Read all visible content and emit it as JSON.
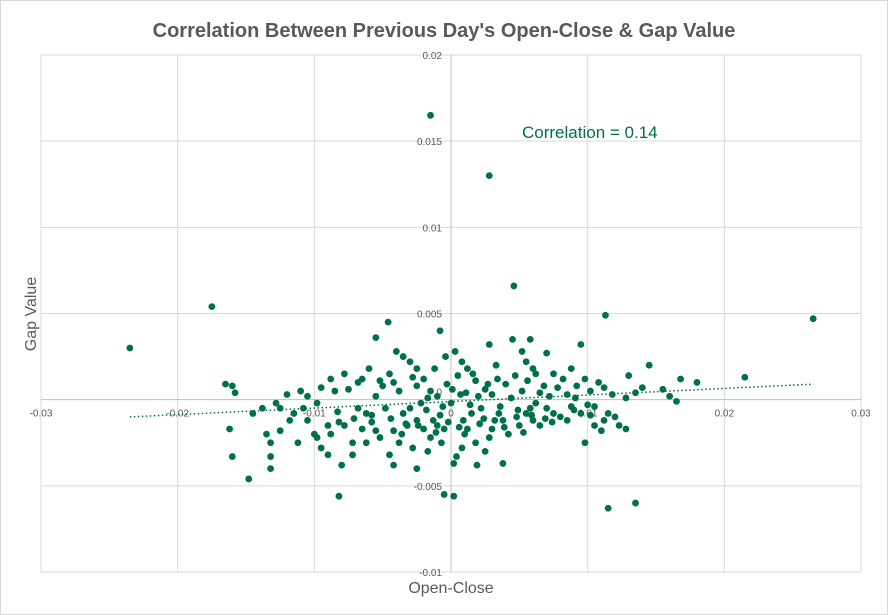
{
  "chart_data": {
    "type": "scatter",
    "title": "Correlation Between Previous  Day's Open-Close & Gap Value",
    "xlabel": "Open-Close",
    "ylabel": "Gap Value",
    "xlim": [
      -0.03,
      0.03
    ],
    "ylim": [
      -0.01,
      0.02
    ],
    "x_ticks": [
      -0.03,
      -0.02,
      -0.01,
      0,
      0.01,
      0.02,
      0.03
    ],
    "x_tick_labels": [
      "-0.03",
      "-0.02",
      "-0.01",
      "0",
      "0.01",
      "0.02",
      "0.03"
    ],
    "y_ticks": [
      -0.01,
      -0.005,
      0,
      0.005,
      0.01,
      0.015,
      0.02
    ],
    "y_tick_labels": [
      "-0.01",
      "-0.005",
      "0",
      "0.005",
      "0.01",
      "0.015",
      "0.02"
    ],
    "grid": true,
    "marker_color": "#00704a",
    "trendline": {
      "style": "dotted",
      "x": [
        -0.0235,
        0.0265
      ],
      "y": [
        -0.001,
        0.0009
      ]
    },
    "annotation": "Correlation = 0.14",
    "series": [
      {
        "values": [
          [
            -0.0235,
            0.003
          ],
          [
            -0.0175,
            0.0054
          ],
          [
            -0.0015,
            0.0165
          ],
          [
            0.0028,
            0.013
          ],
          [
            0.0046,
            0.0066
          ],
          [
            0.0113,
            0.0049
          ],
          [
            0.0265,
            0.0047
          ],
          [
            0.0215,
            0.0013
          ],
          [
            0.018,
            0.001
          ],
          [
            0.0168,
            0.0012
          ],
          [
            0.0145,
            0.002
          ],
          [
            0.0155,
            0.0006
          ],
          [
            0.016,
            0.0002
          ],
          [
            0.0165,
            -0.0001
          ],
          [
            0.013,
            0.0014
          ],
          [
            0.0135,
            0.0004
          ],
          [
            0.014,
            0.0007
          ],
          [
            0.0128,
            0.0001
          ],
          [
            -0.016,
            0.0008
          ],
          [
            -0.0158,
            0.0004
          ],
          [
            -0.0165,
            0.0009
          ],
          [
            -0.0162,
            -0.0017
          ],
          [
            -0.016,
            -0.0033
          ],
          [
            -0.0148,
            -0.0046
          ],
          [
            -0.0132,
            -0.0033
          ],
          [
            -0.0132,
            -0.004
          ],
          [
            -0.0135,
            -0.002
          ],
          [
            -0.0132,
            -0.0025
          ],
          [
            -0.0125,
            -0.0005
          ],
          [
            -0.0112,
            -0.0025
          ],
          [
            -0.01,
            -0.002
          ],
          [
            -0.0095,
            -0.0028
          ],
          [
            -0.0088,
            -0.002
          ],
          [
            -0.009,
            -0.0032
          ],
          [
            -0.0082,
            -0.0013
          ],
          [
            -0.0078,
            -0.0015
          ],
          [
            -0.0072,
            -0.0025
          ],
          [
            -0.0065,
            -0.0017
          ],
          [
            -0.0062,
            -0.0008
          ],
          [
            -0.0058,
            -0.0013
          ],
          [
            -0.0055,
            -0.0018
          ],
          [
            -0.0052,
            -0.0022
          ],
          [
            -0.0045,
            -0.0032
          ],
          [
            -0.0042,
            -0.0038
          ],
          [
            -0.0038,
            -0.0025
          ],
          [
            -0.0036,
            -0.002
          ],
          [
            -0.0032,
            -0.0015
          ],
          [
            -0.0028,
            -0.0028
          ],
          [
            -0.0025,
            -0.0012
          ],
          [
            -0.002,
            -0.0017
          ],
          [
            -0.0017,
            -0.003
          ],
          [
            -0.0015,
            -0.0022
          ],
          [
            -0.001,
            -0.0015
          ],
          [
            -0.0007,
            -0.0025
          ],
          [
            -0.0005,
            -0.0017
          ],
          [
            -0.0002,
            -0.0013
          ],
          [
            0.0002,
            -0.0037
          ],
          [
            0.0004,
            -0.0033
          ],
          [
            0.0008,
            -0.0028
          ],
          [
            0.001,
            -0.002
          ],
          [
            0.0012,
            -0.0017
          ],
          [
            0.0018,
            -0.0025
          ],
          [
            0.0025,
            -0.003
          ],
          [
            0.0028,
            -0.0022
          ],
          [
            0.003,
            -0.0017
          ],
          [
            0.0032,
            -0.0012
          ],
          [
            0.0035,
            -0.0008
          ],
          [
            0.0038,
            -0.0037
          ],
          [
            0.0042,
            -0.002
          ],
          [
            0.0048,
            -0.001
          ],
          [
            0.005,
            -0.0015
          ],
          [
            0.0055,
            -0.0008
          ],
          [
            0.0058,
            -0.0005
          ],
          [
            0.006,
            -0.0012
          ],
          [
            0.0065,
            -0.0015
          ],
          [
            0.007,
            -0.0005
          ],
          [
            0.0075,
            -0.0008
          ],
          [
            0.008,
            -0.001
          ],
          [
            0.0085,
            -0.0012
          ],
          [
            0.009,
            -0.0006
          ],
          [
            0.0095,
            -0.0008
          ],
          [
            0.01,
            -0.0003
          ],
          [
            0.0098,
            -0.0025
          ],
          [
            0.0105,
            -0.0015
          ],
          [
            0.011,
            -0.0018
          ],
          [
            0.0112,
            -0.0012
          ],
          [
            0.0115,
            -0.0008
          ],
          [
            0.012,
            -0.001
          ],
          [
            0.0123,
            -0.0015
          ],
          [
            0.0128,
            -0.0017
          ],
          [
            0.0115,
            -0.0063
          ],
          [
            0.0135,
            -0.006
          ],
          [
            -0.0082,
            -0.0056
          ],
          [
            -0.0005,
            -0.0055
          ],
          [
            0.0002,
            -0.0056
          ],
          [
            -0.0025,
            -0.004
          ],
          [
            -0.008,
            -0.0038
          ],
          [
            -0.0072,
            -0.0032
          ],
          [
            0.0019,
            -0.0038
          ],
          [
            -0.0046,
            0.0045
          ],
          [
            -0.0055,
            0.0036
          ],
          [
            -0.004,
            0.0028
          ],
          [
            -0.0035,
            0.0025
          ],
          [
            -0.003,
            0.0022
          ],
          [
            -0.0025,
            0.0018
          ],
          [
            -0.0008,
            0.004
          ],
          [
            -0.0004,
            0.0025
          ],
          [
            0.0003,
            0.0028
          ],
          [
            0.0008,
            0.0022
          ],
          [
            0.0012,
            0.0018
          ],
          [
            0.0028,
            0.0032
          ],
          [
            0.0033,
            0.002
          ],
          [
            0.0045,
            0.0035
          ],
          [
            0.0052,
            0.0028
          ],
          [
            0.0055,
            0.0022
          ],
          [
            0.006,
            0.0018
          ],
          [
            0.007,
            0.0027
          ],
          [
            0.0075,
            0.0015
          ],
          [
            0.0082,
            0.0012
          ],
          [
            0.0088,
            0.0018
          ],
          [
            0.0092,
            0.0008
          ],
          [
            0.0098,
            0.0012
          ],
          [
            0.0102,
            0.0005
          ],
          [
            0.0108,
            0.001
          ],
          [
            0.0112,
            0.0007
          ],
          [
            0.0095,
            0.0032
          ],
          [
            0.0058,
            0.0035
          ],
          [
            -0.0012,
            0.0018
          ],
          [
            -0.002,
            0.0012
          ],
          [
            -0.0045,
            0.0015
          ],
          [
            -0.005,
            0.0008
          ],
          [
            -0.006,
            0.0018
          ],
          [
            -0.0068,
            0.001
          ],
          [
            -0.0075,
            0.0006
          ],
          [
            -0.0085,
            0.0005
          ],
          [
            -0.0095,
            0.0007
          ],
          [
            -0.0105,
            0.0002
          ],
          [
            -0.011,
            0.0005
          ],
          [
            -0.012,
            0.0003
          ],
          [
            -0.0128,
            -0.0002
          ],
          [
            -0.0138,
            -0.0005
          ],
          [
            -0.0145,
            -0.0008
          ],
          [
            -0.0115,
            -0.0008
          ],
          [
            -0.0105,
            -0.0012
          ],
          [
            -0.009,
            -0.0015
          ],
          [
            -0.0068,
            -0.0005
          ],
          [
            -0.0048,
            -0.0005
          ],
          [
            -0.0035,
            -0.0008
          ],
          [
            -0.0018,
            -0.0006
          ],
          [
            -0.0008,
            -0.0009
          ],
          [
            0.0015,
            -0.0008
          ],
          [
            0.0022,
            -0.0005
          ],
          [
            0.0038,
            -0.0012
          ],
          [
            0.0062,
            -0.0002
          ],
          [
            0.0072,
            0.0002
          ],
          [
            0.0085,
            0.0003
          ],
          [
            0.0068,
            0.0008
          ],
          [
            0.0052,
            0.0005
          ],
          [
            0.004,
            0.0009
          ],
          [
            0.0025,
            0.0006
          ],
          [
            0.0018,
            0.0011
          ],
          [
            0.0005,
            0.0014
          ],
          [
            -0.0003,
            0.0009
          ],
          [
            -0.0015,
            0.0005
          ],
          [
            -0.0025,
            0.0008
          ],
          [
            -0.0038,
            0.0005
          ],
          [
            -0.0055,
            0.0002
          ],
          [
            -0.0065,
            0.0012
          ],
          [
            -0.0078,
            0.0015
          ],
          [
            -0.0088,
            0.0012
          ],
          [
            -0.0098,
            -0.0002
          ],
          [
            -0.0108,
            -0.0005
          ],
          [
            -0.0118,
            -0.0012
          ],
          [
            -0.0125,
            -0.0018
          ],
          [
            -0.0098,
            -0.0022
          ],
          [
            -0.0062,
            -0.0025
          ],
          [
            -0.0042,
            -0.0018
          ],
          [
            -0.003,
            -0.0005
          ],
          [
            -0.0022,
            -0.0002
          ],
          [
            -0.001,
            0.0002
          ],
          [
            0,
            -0.0002
          ],
          [
            0.0007,
            0.0003
          ],
          [
            0.0014,
            -0.0003
          ],
          [
            0.002,
            0.0002
          ],
          [
            0.003,
            0.0003
          ],
          [
            0.0044,
            0.0001
          ],
          [
            0.0056,
            0.0011
          ],
          [
            0.0065,
            0.0004
          ],
          [
            0.0078,
            0.0007
          ],
          [
            0.0088,
            -0.0004
          ],
          [
            0.0105,
            -0.0004
          ],
          [
            0.0118,
            0.0003
          ],
          [
            -0.0013,
            -0.0012
          ],
          [
            -0.0006,
            -0.0004
          ],
          [
            0.0001,
            0.0006
          ],
          [
            0.0009,
            -0.0012
          ],
          [
            0.0016,
            0.0015
          ],
          [
            0.0024,
            -0.0011
          ],
          [
            0.0034,
            0.0012
          ],
          [
            0.0047,
            0.0014
          ],
          [
            -0.0028,
            0.0013
          ],
          [
            -0.0042,
            0.001
          ],
          [
            -0.0052,
            0.0011
          ],
          [
            -0.0033,
            -0.0014
          ],
          [
            -0.0058,
            -0.0009
          ],
          [
            -0.0071,
            -0.0011
          ],
          [
            -0.0083,
            -0.0007
          ],
          [
            0.0011,
            0.0004
          ],
          [
            -0.0017,
            0.0001
          ],
          [
            0.0036,
            -0.0004
          ],
          [
            0.0059,
            -0.0009
          ],
          [
            0.0074,
            -0.0013
          ],
          [
            0.0091,
            0.0001
          ],
          [
            0.0102,
            -0.0009
          ],
          [
            0.0062,
            0.0015
          ],
          [
            0.0049,
            -0.0006
          ],
          [
            0.0027,
            0.0009
          ],
          [
            -0.0044,
            -0.0011
          ],
          [
            -0.0024,
            -0.0015
          ],
          [
            -0.0011,
            -0.0019
          ],
          [
            0.0006,
            -0.0016
          ],
          [
            0.0021,
            -0.0014
          ],
          [
            0.0039,
            -0.0016
          ],
          [
            0.0053,
            -0.0019
          ],
          [
            0.0069,
            -0.0011
          ]
        ]
      }
    ]
  }
}
